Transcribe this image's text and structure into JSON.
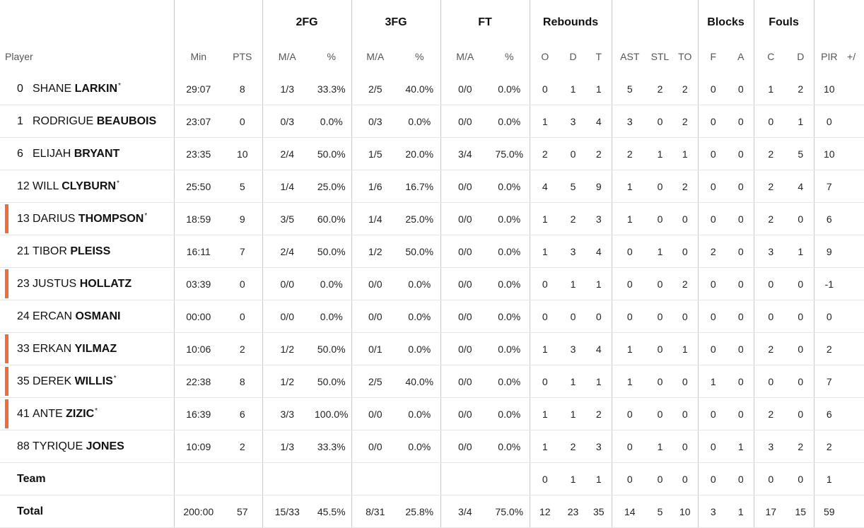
{
  "header": {
    "groups": {
      "fg2": "2FG",
      "fg3": "3FG",
      "ft": "FT",
      "reb": "Rebounds",
      "blk": "Blocks",
      "fouls": "Fouls"
    },
    "sub": {
      "player": "Player",
      "min": "Min",
      "pts": "PTS",
      "fg2_ma": "M/A",
      "fg2_pct": "%",
      "fg3_ma": "M/A",
      "fg3_pct": "%",
      "ft_ma": "M/A",
      "ft_pct": "%",
      "o": "O",
      "d": "D",
      "t": "T",
      "ast": "AST",
      "stl": "STL",
      "to": "TO",
      "bf": "F",
      "ba": "A",
      "fc": "C",
      "fd": "D",
      "pir": "PIR",
      "pm": "+/"
    }
  },
  "accent_color": "#f26b3a",
  "players": [
    {
      "num": "0",
      "first": "SHANE",
      "last": "LARKIN",
      "star": "*",
      "sub_marker": false,
      "min": "29:07",
      "pts": "8",
      "fg2_ma": "1/3",
      "fg2_pct": "33.3%",
      "fg3_ma": "2/5",
      "fg3_pct": "40.0%",
      "ft_ma": "0/0",
      "ft_pct": "0.0%",
      "o": "0",
      "d": "1",
      "t": "1",
      "ast": "5",
      "stl": "2",
      "to": "2",
      "bf": "0",
      "ba": "0",
      "fc": "1",
      "fd": "2",
      "pir": "10"
    },
    {
      "num": "1",
      "first": "RODRIGUE",
      "last": "BEAUBOIS",
      "star": "",
      "sub_marker": false,
      "min": "23:07",
      "pts": "0",
      "fg2_ma": "0/3",
      "fg2_pct": "0.0%",
      "fg3_ma": "0/3",
      "fg3_pct": "0.0%",
      "ft_ma": "0/0",
      "ft_pct": "0.0%",
      "o": "1",
      "d": "3",
      "t": "4",
      "ast": "3",
      "stl": "0",
      "to": "2",
      "bf": "0",
      "ba": "0",
      "fc": "0",
      "fd": "1",
      "pir": "0"
    },
    {
      "num": "6",
      "first": "ELIJAH",
      "last": "BRYANT",
      "star": "",
      "sub_marker": false,
      "min": "23:35",
      "pts": "10",
      "fg2_ma": "2/4",
      "fg2_pct": "50.0%",
      "fg3_ma": "1/5",
      "fg3_pct": "20.0%",
      "ft_ma": "3/4",
      "ft_pct": "75.0%",
      "o": "2",
      "d": "0",
      "t": "2",
      "ast": "2",
      "stl": "1",
      "to": "1",
      "bf": "0",
      "ba": "0",
      "fc": "2",
      "fd": "5",
      "pir": "10"
    },
    {
      "num": "12",
      "first": "WILL",
      "last": "CLYBURN",
      "star": "*",
      "sub_marker": false,
      "min": "25:50",
      "pts": "5",
      "fg2_ma": "1/4",
      "fg2_pct": "25.0%",
      "fg3_ma": "1/6",
      "fg3_pct": "16.7%",
      "ft_ma": "0/0",
      "ft_pct": "0.0%",
      "o": "4",
      "d": "5",
      "t": "9",
      "ast": "1",
      "stl": "0",
      "to": "2",
      "bf": "0",
      "ba": "0",
      "fc": "2",
      "fd": "4",
      "pir": "7"
    },
    {
      "num": "13",
      "first": "DARIUS",
      "last": "THOMPSON",
      "star": "*",
      "sub_marker": true,
      "min": "18:59",
      "pts": "9",
      "fg2_ma": "3/5",
      "fg2_pct": "60.0%",
      "fg3_ma": "1/4",
      "fg3_pct": "25.0%",
      "ft_ma": "0/0",
      "ft_pct": "0.0%",
      "o": "1",
      "d": "2",
      "t": "3",
      "ast": "1",
      "stl": "0",
      "to": "0",
      "bf": "0",
      "ba": "0",
      "fc": "2",
      "fd": "0",
      "pir": "6"
    },
    {
      "num": "21",
      "first": "TIBOR",
      "last": "PLEISS",
      "star": "",
      "sub_marker": false,
      "min": "16:11",
      "pts": "7",
      "fg2_ma": "2/4",
      "fg2_pct": "50.0%",
      "fg3_ma": "1/2",
      "fg3_pct": "50.0%",
      "ft_ma": "0/0",
      "ft_pct": "0.0%",
      "o": "1",
      "d": "3",
      "t": "4",
      "ast": "0",
      "stl": "1",
      "to": "0",
      "bf": "2",
      "ba": "0",
      "fc": "3",
      "fd": "1",
      "pir": "9"
    },
    {
      "num": "23",
      "first": "JUSTUS",
      "last": "HOLLATZ",
      "star": "",
      "sub_marker": true,
      "min": "03:39",
      "pts": "0",
      "fg2_ma": "0/0",
      "fg2_pct": "0.0%",
      "fg3_ma": "0/0",
      "fg3_pct": "0.0%",
      "ft_ma": "0/0",
      "ft_pct": "0.0%",
      "o": "0",
      "d": "1",
      "t": "1",
      "ast": "0",
      "stl": "0",
      "to": "2",
      "bf": "0",
      "ba": "0",
      "fc": "0",
      "fd": "0",
      "pir": "-1"
    },
    {
      "num": "24",
      "first": "ERCAN",
      "last": "OSMANI",
      "star": "",
      "sub_marker": false,
      "min": "00:00",
      "pts": "0",
      "fg2_ma": "0/0",
      "fg2_pct": "0.0%",
      "fg3_ma": "0/0",
      "fg3_pct": "0.0%",
      "ft_ma": "0/0",
      "ft_pct": "0.0%",
      "o": "0",
      "d": "0",
      "t": "0",
      "ast": "0",
      "stl": "0",
      "to": "0",
      "bf": "0",
      "ba": "0",
      "fc": "0",
      "fd": "0",
      "pir": "0"
    },
    {
      "num": "33",
      "first": "ERKAN",
      "last": "YILMAZ",
      "star": "",
      "sub_marker": true,
      "min": "10:06",
      "pts": "2",
      "fg2_ma": "1/2",
      "fg2_pct": "50.0%",
      "fg3_ma": "0/1",
      "fg3_pct": "0.0%",
      "ft_ma": "0/0",
      "ft_pct": "0.0%",
      "o": "1",
      "d": "3",
      "t": "4",
      "ast": "1",
      "stl": "0",
      "to": "1",
      "bf": "0",
      "ba": "0",
      "fc": "2",
      "fd": "0",
      "pir": "2"
    },
    {
      "num": "35",
      "first": "DEREK",
      "last": "WILLIS",
      "star": "*",
      "sub_marker": true,
      "min": "22:38",
      "pts": "8",
      "fg2_ma": "1/2",
      "fg2_pct": "50.0%",
      "fg3_ma": "2/5",
      "fg3_pct": "40.0%",
      "ft_ma": "0/0",
      "ft_pct": "0.0%",
      "o": "0",
      "d": "1",
      "t": "1",
      "ast": "1",
      "stl": "0",
      "to": "0",
      "bf": "1",
      "ba": "0",
      "fc": "0",
      "fd": "0",
      "pir": "7"
    },
    {
      "num": "41",
      "first": "ANTE",
      "last": "ZIZIC",
      "star": "*",
      "sub_marker": true,
      "min": "16:39",
      "pts": "6",
      "fg2_ma": "3/3",
      "fg2_pct": "100.0%",
      "fg3_ma": "0/0",
      "fg3_pct": "0.0%",
      "ft_ma": "0/0",
      "ft_pct": "0.0%",
      "o": "1",
      "d": "1",
      "t": "2",
      "ast": "0",
      "stl": "0",
      "to": "0",
      "bf": "0",
      "ba": "0",
      "fc": "2",
      "fd": "0",
      "pir": "6"
    },
    {
      "num": "88",
      "first": "TYRIQUE",
      "last": "JONES",
      "star": "",
      "sub_marker": false,
      "min": "10:09",
      "pts": "2",
      "fg2_ma": "1/3",
      "fg2_pct": "33.3%",
      "fg3_ma": "0/0",
      "fg3_pct": "0.0%",
      "ft_ma": "0/0",
      "ft_pct": "0.0%",
      "o": "1",
      "d": "2",
      "t": "3",
      "ast": "0",
      "stl": "1",
      "to": "0",
      "bf": "0",
      "ba": "1",
      "fc": "3",
      "fd": "2",
      "pir": "2"
    }
  ],
  "team": {
    "label": "Team",
    "min": "",
    "pts": "",
    "fg2_ma": "",
    "fg2_pct": "",
    "fg3_ma": "",
    "fg3_pct": "",
    "ft_ma": "",
    "ft_pct": "",
    "o": "0",
    "d": "1",
    "t": "1",
    "ast": "0",
    "stl": "0",
    "to": "0",
    "bf": "0",
    "ba": "0",
    "fc": "0",
    "fd": "0",
    "pir": "1"
  },
  "total": {
    "label": "Total",
    "min": "200:00",
    "pts": "57",
    "fg2_ma": "15/33",
    "fg2_pct": "45.5%",
    "fg3_ma": "8/31",
    "fg3_pct": "25.8%",
    "ft_ma": "3/4",
    "ft_pct": "75.0%",
    "o": "12",
    "d": "23",
    "t": "35",
    "ast": "14",
    "stl": "5",
    "to": "10",
    "bf": "3",
    "ba": "1",
    "fc": "17",
    "fd": "15",
    "pir": "59"
  }
}
